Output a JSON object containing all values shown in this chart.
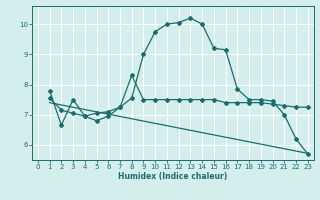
{
  "xlabel": "Humidex (Indice chaleur)",
  "bg_color": "#d4eeee",
  "grid_color": "#b8d8d8",
  "line_color": "#1e6b6b",
  "xlim": [
    -0.5,
    23.5
  ],
  "ylim": [
    5.5,
    10.6
  ],
  "yticks": [
    6,
    7,
    8,
    9,
    10
  ],
  "xticks": [
    0,
    1,
    2,
    3,
    4,
    5,
    6,
    7,
    8,
    9,
    10,
    11,
    12,
    13,
    14,
    15,
    16,
    17,
    18,
    19,
    20,
    21,
    22,
    23
  ],
  "line1_x": [
    1,
    2,
    3,
    4,
    5,
    6,
    7,
    8,
    9,
    10,
    11,
    12,
    13,
    14,
    15,
    16,
    17,
    18,
    19,
    20,
    21,
    22,
    23
  ],
  "line1_y": [
    7.8,
    6.65,
    7.5,
    6.95,
    6.8,
    6.95,
    7.25,
    7.55,
    9.0,
    9.75,
    10.0,
    10.05,
    10.2,
    10.0,
    9.2,
    9.15,
    7.85,
    7.5,
    7.5,
    7.45,
    7.0,
    6.2,
    5.7
  ],
  "line2_x": [
    1,
    2,
    3,
    4,
    5,
    6,
    7,
    8,
    9,
    10,
    11,
    12,
    13,
    14,
    15,
    16,
    17,
    18,
    19,
    20,
    21,
    22,
    23
  ],
  "line2_y": [
    7.55,
    7.15,
    7.05,
    6.95,
    7.05,
    7.1,
    7.25,
    8.3,
    7.5,
    7.5,
    7.5,
    7.5,
    7.5,
    7.5,
    7.5,
    7.4,
    7.4,
    7.4,
    7.4,
    7.35,
    7.3,
    7.25,
    7.25
  ],
  "line3_x": [
    1,
    23
  ],
  "line3_y": [
    7.4,
    5.72
  ]
}
